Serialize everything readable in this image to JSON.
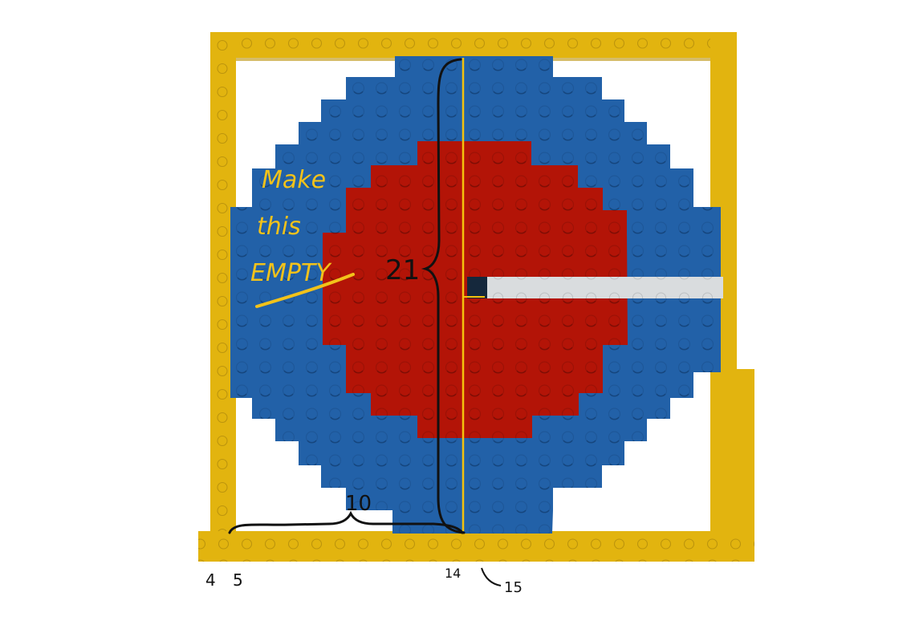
{
  "colors": {
    "frame": "#e2b40f",
    "frame_dark": "#b98f05",
    "outer_disc": "#2261a8",
    "inner_disc": "#b31407",
    "slot": "#d9dcde",
    "slot_end": "#15283c",
    "center_line": "#f4c20d",
    "ink": "#111111",
    "annotation": "#f2c21a"
  },
  "annotations": {
    "note_line1": "Make",
    "note_line2": "this",
    "note_line3": "EMPTY",
    "height_label": "21",
    "width_label": "10"
  },
  "column_labels": {
    "col4": "4",
    "col5": "5",
    "col14": "14",
    "col15": "15"
  }
}
